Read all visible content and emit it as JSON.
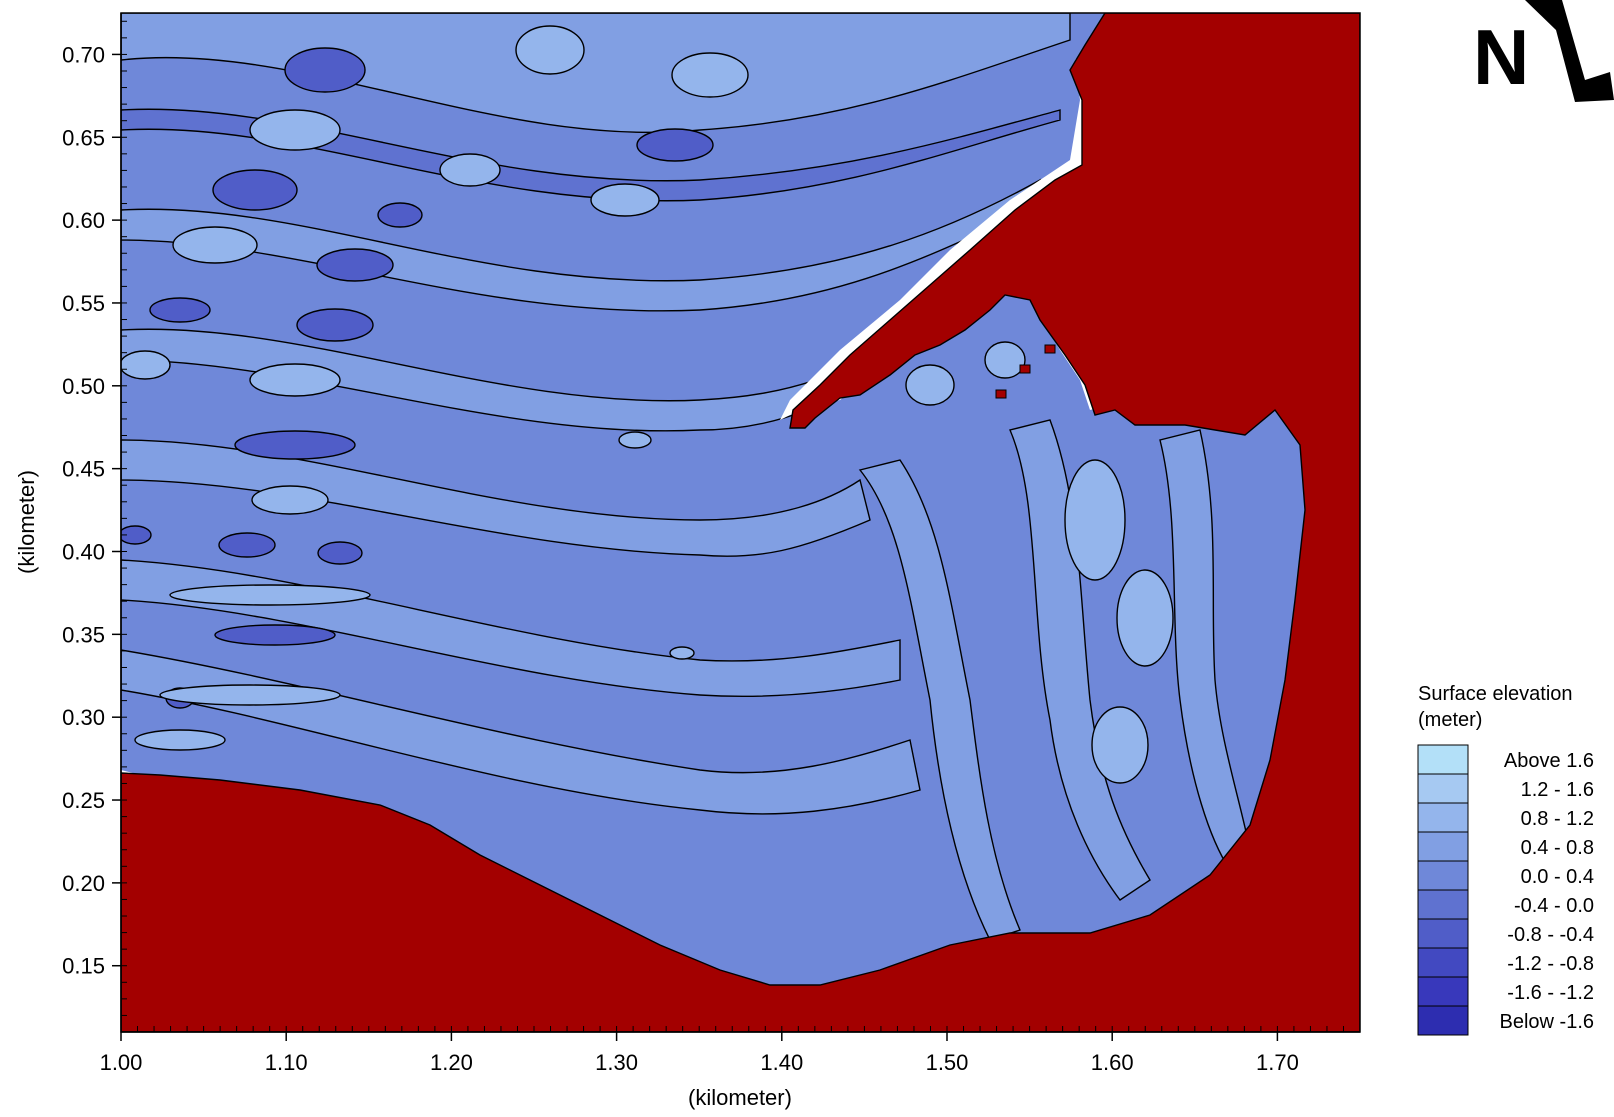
{
  "axes": {
    "x_label": "(kilometer)",
    "y_label": "(kilometer)",
    "x_range": [
      1.0,
      1.75
    ],
    "y_range": [
      0.11,
      0.725
    ],
    "x_ticks": [
      "1.00",
      "1.10",
      "1.20",
      "1.30",
      "1.40",
      "1.50",
      "1.60",
      "1.70"
    ],
    "y_ticks": [
      "0.70",
      "0.65",
      "0.60",
      "0.55",
      "0.50",
      "0.45",
      "0.40",
      "0.35",
      "0.30",
      "0.25",
      "0.20",
      "0.15"
    ]
  },
  "north_arrow": {
    "label": "N",
    "icon": "north-arrow-icon"
  },
  "legend": {
    "title_line1": "Surface elevation",
    "title_line2": "(meter)",
    "items": [
      {
        "label": "Above  1.6",
        "color": "#b3e0f8"
      },
      {
        "label": "1.2 -  1.6",
        "color": "#a6c9f2"
      },
      {
        "label": "0.8 -  1.2",
        "color": "#94b5ec"
      },
      {
        "label": "0.4 -  0.8",
        "color": "#819fe3"
      },
      {
        "label": "0.0 -  0.4",
        "color": "#6f88d9"
      },
      {
        "label": "-0.4 -  0.0",
        "color": "#5f72d0"
      },
      {
        "label": "-0.8 - -0.4",
        "color": "#505dc8"
      },
      {
        "label": "-1.2 - -0.8",
        "color": "#4249c1"
      },
      {
        "label": "-1.6 - -1.2",
        "color": "#3838bb"
      },
      {
        "label": "Below -1.6",
        "color": "#2d2db0"
      }
    ]
  },
  "colors": {
    "land": "#a30000",
    "water_base": "#6f88d9",
    "shore": "#ffffff"
  }
}
